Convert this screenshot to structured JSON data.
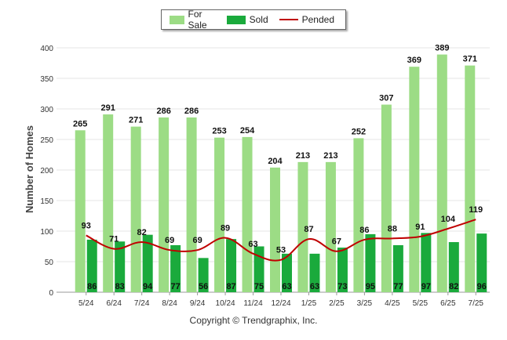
{
  "legend": {
    "for_sale": "For Sale",
    "sold": "Sold",
    "pended": "Pended"
  },
  "colors": {
    "for_sale": "#9cdc85",
    "sold": "#1aaa3c",
    "pended": "#c00000",
    "grid": "#e6e6e6"
  },
  "footer": "Copyright © Trendgraphix, Inc.",
  "chart_data": {
    "type": "bar",
    "ylabel": "Number of Homes",
    "xlabel": "",
    "ylim": [
      0,
      400
    ],
    "yticks": [
      0,
      50,
      100,
      150,
      200,
      250,
      300,
      350,
      400
    ],
    "categories": [
      "5/24",
      "6/24",
      "7/24",
      "8/24",
      "9/24",
      "10/24",
      "11/24",
      "12/24",
      "1/25",
      "2/25",
      "3/25",
      "4/25",
      "5/25",
      "6/25",
      "7/25"
    ],
    "grid": true,
    "legend_position": "top-center",
    "series": [
      {
        "name": "For Sale",
        "kind": "bar",
        "values": [
          265,
          291,
          271,
          286,
          286,
          253,
          254,
          204,
          213,
          213,
          252,
          307,
          369,
          389,
          371
        ]
      },
      {
        "name": "Sold",
        "kind": "bar",
        "values": [
          86,
          83,
          94,
          77,
          56,
          87,
          75,
          63,
          63,
          73,
          95,
          77,
          97,
          82,
          96
        ]
      },
      {
        "name": "Pended",
        "kind": "line",
        "values": [
          93,
          71,
          82,
          69,
          69,
          89,
          63,
          53,
          87,
          67,
          86,
          88,
          91,
          104,
          119
        ]
      }
    ]
  }
}
